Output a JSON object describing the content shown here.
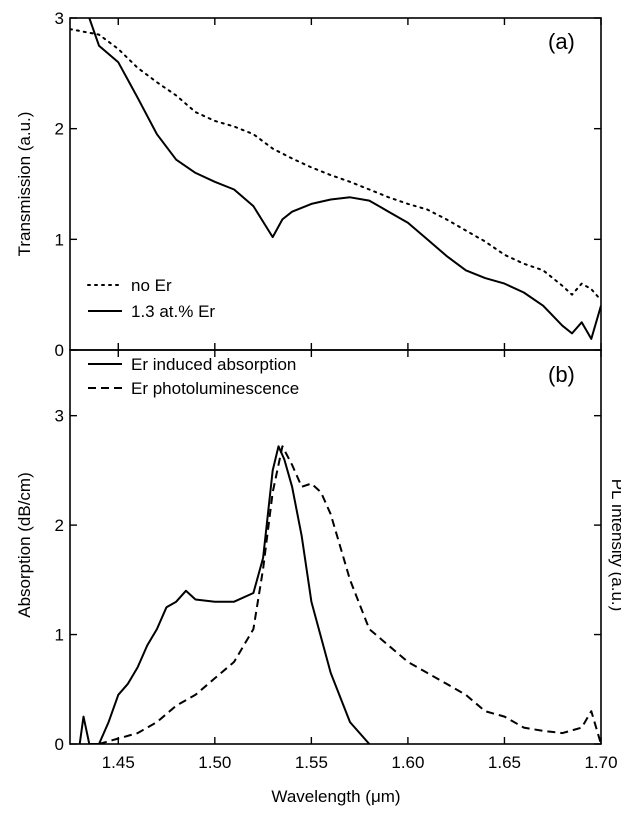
{
  "chart_data": [
    {
      "type": "line",
      "panel_label": "(a)",
      "xlabel": "",
      "ylabel": "Transmission (a.u.)",
      "xlim": [
        1.425,
        1.7
      ],
      "ylim": [
        0,
        3
      ],
      "yticks": [
        "0",
        "1",
        "2",
        "3"
      ],
      "legend": {
        "position": "bottom-left"
      },
      "series": [
        {
          "name": "no Er",
          "style": "dotted",
          "x": [
            1.425,
            1.44,
            1.45,
            1.46,
            1.47,
            1.48,
            1.49,
            1.5,
            1.51,
            1.52,
            1.53,
            1.54,
            1.55,
            1.56,
            1.57,
            1.58,
            1.59,
            1.6,
            1.61,
            1.62,
            1.63,
            1.64,
            1.65,
            1.66,
            1.67,
            1.68,
            1.685,
            1.69,
            1.695,
            1.7
          ],
          "y": [
            2.9,
            2.85,
            2.72,
            2.55,
            2.42,
            2.3,
            2.15,
            2.07,
            2.02,
            1.95,
            1.82,
            1.73,
            1.65,
            1.58,
            1.52,
            1.45,
            1.38,
            1.32,
            1.27,
            1.18,
            1.08,
            0.98,
            0.86,
            0.78,
            0.72,
            0.58,
            0.5,
            0.6,
            0.55,
            0.45
          ]
        },
        {
          "name": "1.3 at.% Er",
          "style": "solid",
          "x": [
            1.435,
            1.44,
            1.45,
            1.46,
            1.47,
            1.48,
            1.49,
            1.5,
            1.51,
            1.52,
            1.53,
            1.535,
            1.54,
            1.55,
            1.56,
            1.57,
            1.58,
            1.59,
            1.6,
            1.61,
            1.62,
            1.63,
            1.64,
            1.65,
            1.66,
            1.67,
            1.68,
            1.685,
            1.69,
            1.695,
            1.7
          ],
          "y": [
            3.0,
            2.75,
            2.6,
            2.28,
            1.95,
            1.72,
            1.6,
            1.52,
            1.45,
            1.3,
            1.02,
            1.18,
            1.25,
            1.32,
            1.36,
            1.38,
            1.35,
            1.25,
            1.15,
            1.0,
            0.85,
            0.72,
            0.65,
            0.6,
            0.52,
            0.4,
            0.22,
            0.15,
            0.25,
            0.1,
            0.4
          ]
        }
      ]
    },
    {
      "type": "line",
      "panel_label": "(b)",
      "xlabel": "Wavelength (μm)",
      "ylabel": "Absorption (dB/cm)",
      "ylabel_right": "PL Intensity (a.u.)",
      "xlim": [
        1.425,
        1.7
      ],
      "ylim": [
        0,
        3.6
      ],
      "xticks": [
        "1.45",
        "1.50",
        "1.55",
        "1.60",
        "1.65",
        "1.70"
      ],
      "yticks": [
        "0",
        "1",
        "2",
        "3"
      ],
      "legend": {
        "position": "top-left"
      },
      "series": [
        {
          "name": "Er induced absorption",
          "style": "solid",
          "x": [
            1.43,
            1.432,
            1.435,
            1.44,
            1.445,
            1.45,
            1.455,
            1.46,
            1.465,
            1.47,
            1.475,
            1.48,
            1.485,
            1.49,
            1.5,
            1.51,
            1.52,
            1.525,
            1.53,
            1.533,
            1.536,
            1.54,
            1.545,
            1.55,
            1.56,
            1.57,
            1.58
          ],
          "y": [
            0.0,
            0.25,
            0.0,
            0.0,
            0.2,
            0.45,
            0.55,
            0.7,
            0.9,
            1.05,
            1.25,
            1.3,
            1.4,
            1.32,
            1.3,
            1.3,
            1.38,
            1.7,
            2.5,
            2.72,
            2.6,
            2.35,
            1.9,
            1.3,
            0.65,
            0.2,
            0.0
          ]
        },
        {
          "name": "Er photoluminescence",
          "style": "dashed",
          "x": [
            1.44,
            1.45,
            1.46,
            1.47,
            1.48,
            1.49,
            1.5,
            1.51,
            1.52,
            1.525,
            1.53,
            1.535,
            1.54,
            1.545,
            1.55,
            1.555,
            1.56,
            1.57,
            1.58,
            1.59,
            1.6,
            1.61,
            1.62,
            1.63,
            1.64,
            1.65,
            1.66,
            1.67,
            1.68,
            1.69,
            1.695,
            1.7
          ],
          "y": [
            0.0,
            0.05,
            0.1,
            0.2,
            0.35,
            0.45,
            0.6,
            0.75,
            1.05,
            1.6,
            2.3,
            2.72,
            2.55,
            2.35,
            2.38,
            2.3,
            2.1,
            1.5,
            1.05,
            0.9,
            0.75,
            0.65,
            0.55,
            0.45,
            0.3,
            0.25,
            0.15,
            0.12,
            0.1,
            0.15,
            0.3,
            0.0
          ]
        }
      ]
    }
  ]
}
